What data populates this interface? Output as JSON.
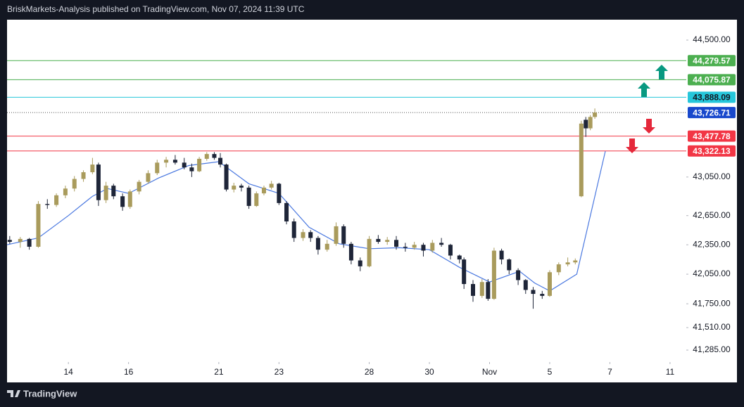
{
  "header": {
    "title": "BriskMarkets-Analysis published on TradingView.com, Nov 07, 2024 11:39 UTC"
  },
  "footer": {
    "brand": "TradingView"
  },
  "chart_data": {
    "type": "candlestick",
    "log": true,
    "up_color": "#a99b5c",
    "down_color": "#1e2538",
    "ylim": [
      41166,
      44720
    ],
    "yticks": [
      {
        "value": 44500,
        "label": "44,500.00"
      },
      {
        "value": 43050,
        "label": "43,050.00"
      },
      {
        "value": 42650,
        "label": "42,650.00"
      },
      {
        "value": 42350,
        "label": "42,350.00"
      },
      {
        "value": 42050,
        "label": "42,050.00"
      },
      {
        "value": 41750,
        "label": "41,750.00"
      },
      {
        "value": 41510,
        "label": "41,510.00"
      },
      {
        "value": 41285,
        "label": "41,285.00"
      }
    ],
    "xlim": [
      -2.04,
      20.54
    ],
    "xticks": [
      {
        "value": 0,
        "label": "14"
      },
      {
        "value": 2,
        "label": "16"
      },
      {
        "value": 5,
        "label": "21"
      },
      {
        "value": 7,
        "label": "23"
      },
      {
        "value": 10,
        "label": "28"
      },
      {
        "value": 12,
        "label": "30"
      },
      {
        "value": 14,
        "label": "Nov"
      },
      {
        "value": 16,
        "label": "5"
      },
      {
        "value": 18,
        "label": "7"
      },
      {
        "value": 20,
        "label": "11"
      }
    ],
    "x": [
      -1.95,
      -1.6,
      -1.3,
      -1.0,
      -0.7,
      -0.4,
      -0.1,
      0.2,
      0.5,
      0.8,
      1.0,
      1.25,
      1.5,
      1.8,
      2.05,
      2.35,
      2.65,
      2.95,
      3.25,
      3.55,
      3.85,
      4.1,
      4.35,
      4.6,
      4.85,
      5.05,
      5.25,
      5.5,
      5.75,
      6.0,
      6.25,
      6.5,
      6.75,
      7.0,
      7.25,
      7.5,
      7.8,
      8.05,
      8.3,
      8.6,
      8.9,
      9.15,
      9.4,
      9.7,
      10.0,
      10.3,
      10.6,
      10.9,
      11.2,
      11.5,
      11.8,
      12.1,
      12.4,
      12.7,
      13.0,
      13.15,
      13.45,
      13.75,
      13.95,
      14.15,
      14.4,
      14.65,
      14.95,
      15.2,
      15.45,
      15.75,
      16.0,
      16.3,
      16.6,
      16.85,
      17.05,
      17.2,
      17.35,
      17.5
    ],
    "open": [
      42400,
      42380,
      42410,
      42330,
      42770,
      42760,
      42860,
      42930,
      43030,
      43100,
      43180,
      42810,
      42960,
      42850,
      42740,
      42900,
      43000,
      43090,
      43200,
      43230,
      43200,
      43150,
      43110,
      43240,
      43290,
      43250,
      43180,
      42920,
      42960,
      42940,
      42750,
      42880,
      42940,
      42980,
      42780,
      42590,
      42420,
      42480,
      42420,
      42300,
      42360,
      42540,
      42360,
      42190,
      42130,
      42410,
      42380,
      42400,
      42330,
      42320,
      42350,
      42290,
      42370,
      42350,
      42240,
      42200,
      41950,
      41830,
      41970,
      41800,
      42290,
      42200,
      42090,
      41990,
      41890,
      41850,
      41830,
      42070,
      42150,
      42170,
      42850,
      43650,
      43560,
      43680
    ],
    "high": [
      42440,
      42430,
      42420,
      42800,
      42820,
      42880,
      42960,
      43060,
      43120,
      43250,
      43200,
      43000,
      42980,
      42880,
      42920,
      43020,
      43120,
      43230,
      43260,
      43280,
      43250,
      43190,
      43260,
      43310,
      43310,
      43300,
      43190,
      42990,
      42980,
      42960,
      42900,
      42960,
      43010,
      42990,
      42800,
      42620,
      42510,
      42500,
      42440,
      42400,
      42580,
      42560,
      42380,
      42220,
      42440,
      42450,
      42430,
      42440,
      42370,
      42380,
      42370,
      42400,
      42420,
      42360,
      42250,
      42220,
      41990,
      42000,
      42000,
      42320,
      42310,
      42210,
      42110,
      42000,
      41920,
      41880,
      42090,
      42170,
      42220,
      42210,
      43640,
      43680,
      43700,
      43770
    ],
    "low": [
      42360,
      42320,
      42300,
      42320,
      42720,
      42740,
      42830,
      42900,
      43000,
      43080,
      42750,
      42780,
      42820,
      42700,
      42720,
      42870,
      42980,
      43070,
      43150,
      43180,
      43130,
      43050,
      43100,
      43220,
      43230,
      43150,
      42900,
      42890,
      42900,
      42720,
      42740,
      42860,
      42920,
      42760,
      42560,
      42380,
      42390,
      42380,
      42250,
      42280,
      42340,
      42320,
      42150,
      42080,
      42120,
      42360,
      42350,
      42300,
      42280,
      42300,
      42230,
      42270,
      42330,
      42200,
      42160,
      41900,
      41770,
      41810,
      41780,
      41790,
      42150,
      42050,
      41940,
      41850,
      41700,
      41800,
      41820,
      42040,
      42130,
      42150,
      42840,
      43470,
      43540,
      43660
    ],
    "close": [
      42380,
      42410,
      42330,
      42770,
      42760,
      42860,
      42930,
      43030,
      43100,
      43180,
      42810,
      42960,
      42850,
      42740,
      42900,
      43000,
      43090,
      43200,
      43230,
      43200,
      43150,
      43110,
      43240,
      43290,
      43250,
      43180,
      42920,
      42960,
      42940,
      42750,
      42880,
      42940,
      42980,
      42780,
      42590,
      42420,
      42480,
      42420,
      42300,
      42360,
      42540,
      42360,
      42190,
      42130,
      42410,
      42380,
      42400,
      42330,
      42320,
      42350,
      42290,
      42370,
      42350,
      42240,
      42200,
      41950,
      41830,
      41970,
      41800,
      42290,
      42200,
      42090,
      41990,
      41890,
      41850,
      41830,
      42070,
      42150,
      42170,
      42190,
      43610,
      43560,
      43680,
      43727
    ],
    "lines": [
      {
        "color": "#4a78e0",
        "x": [
          -2.04,
          -1,
          0,
          0.8,
          1.3,
          2,
          3,
          4,
          5,
          6,
          7,
          8,
          9,
          10,
          11,
          12,
          13,
          14,
          15,
          15.5,
          16,
          16.9,
          17.85
        ],
        "values": [
          42350,
          42420,
          42650,
          42850,
          42930,
          42880,
          43040,
          43170,
          43210,
          42980,
          42880,
          42530,
          42360,
          42310,
          42320,
          42300,
          42120,
          41970,
          42080,
          41960,
          41880,
          42050,
          43320
        ]
      }
    ],
    "levels": [
      {
        "value": 44279.57,
        "label": "44,279.57",
        "color": "#4caf50",
        "text_color": "#ffffff"
      },
      {
        "value": 44075.87,
        "label": "44,075.87",
        "color": "#4caf50",
        "text_color": "#ffffff"
      },
      {
        "value": 43888.09,
        "label": "43,888.09",
        "color": "#26c6da",
        "text_color": "#131722"
      },
      {
        "value": 43726.71,
        "label": "43,726.71",
        "color": "#1848cc",
        "text_color": "#ffffff",
        "dotted": true
      },
      {
        "value": 43477.78,
        "label": "43,477.78",
        "color": "#f23645",
        "text_color": "#ffffff"
      },
      {
        "value": 43322.13,
        "label": "43,322.13",
        "color": "#f23645",
        "text_color": "#ffffff"
      }
    ]
  }
}
